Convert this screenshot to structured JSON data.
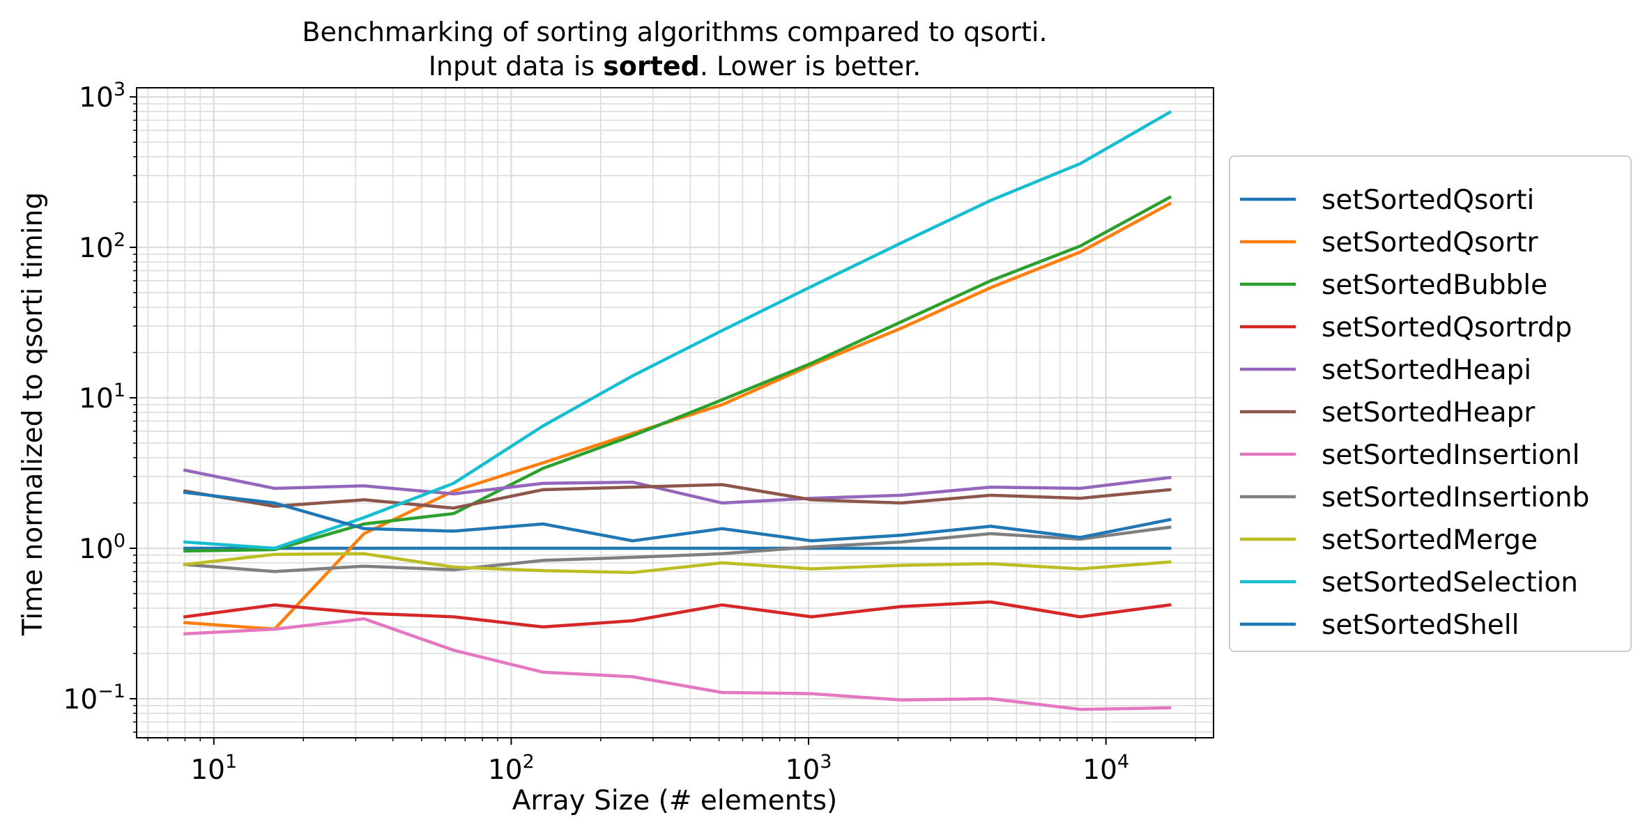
{
  "chart_data": {
    "type": "line",
    "title": {
      "line1": "Benchmarking of sorting algorithms compared to qsorti.",
      "line2_prefix": "Input data is ",
      "line2_bold": "sorted",
      "line2_suffix": ". Lower is better."
    },
    "xlabel": "Array Size (# elements)",
    "ylabel": "Time normalized to qsorti timing",
    "x_scale": "log",
    "y_scale": "log",
    "xlim": [
      5.5,
      23000
    ],
    "ylim": [
      0.055,
      1150
    ],
    "grid": true,
    "legend_position": "right, outside plot",
    "x_ticks": [
      {
        "base": "10",
        "exp": "1",
        "value": 10
      },
      {
        "base": "10",
        "exp": "2",
        "value": 100
      },
      {
        "base": "10",
        "exp": "3",
        "value": 1000
      },
      {
        "base": "10",
        "exp": "4",
        "value": 10000
      }
    ],
    "y_ticks": [
      {
        "base": "10",
        "exp": "−1",
        "value": 0.1
      },
      {
        "base": "10",
        "exp": "0",
        "value": 1
      },
      {
        "base": "10",
        "exp": "1",
        "value": 10
      },
      {
        "base": "10",
        "exp": "2",
        "value": 100
      },
      {
        "base": "10",
        "exp": "3",
        "value": 1000
      }
    ],
    "x": [
      8,
      16,
      32,
      64,
      128,
      256,
      512,
      1024,
      2048,
      4096,
      8192,
      16384
    ],
    "series": [
      {
        "name": "setSortedQsorti",
        "color": "#1f77b4",
        "values": [
          1.0,
          1.0,
          1.0,
          1.0,
          1.0,
          1.0,
          1.0,
          1.0,
          1.0,
          1.0,
          1.0,
          1.0
        ]
      },
      {
        "name": "setSortedQsortr",
        "color": "#ff7f0e",
        "values": [
          0.32,
          0.29,
          1.25,
          2.4,
          3.7,
          5.8,
          9.0,
          16.5,
          29.0,
          54.0,
          93.0,
          195.0
        ]
      },
      {
        "name": "setSortedBubble",
        "color": "#2ca02c",
        "values": [
          0.96,
          0.98,
          1.45,
          1.7,
          3.4,
          5.6,
          9.7,
          17.0,
          32.0,
          60.0,
          102.0,
          215.0
        ]
      },
      {
        "name": "setSortedQsortrdp",
        "color": "#d62728",
        "values": [
          0.35,
          0.42,
          0.37,
          0.35,
          0.3,
          0.33,
          0.42,
          0.35,
          0.41,
          0.44,
          0.35,
          0.42
        ]
      },
      {
        "name": "setSortedHeapi",
        "color": "#9467bd",
        "values": [
          3.3,
          2.5,
          2.6,
          2.3,
          2.7,
          2.75,
          2.0,
          2.15,
          2.25,
          2.55,
          2.5,
          2.95
        ]
      },
      {
        "name": "setSortedHeapr",
        "color": "#8c564b",
        "values": [
          2.4,
          1.9,
          2.1,
          1.85,
          2.45,
          2.55,
          2.65,
          2.1,
          2.0,
          2.25,
          2.15,
          2.45
        ]
      },
      {
        "name": "setSortedInsertionl",
        "color": "#e377c2",
        "values": [
          0.27,
          0.29,
          0.34,
          0.21,
          0.15,
          0.14,
          0.11,
          0.108,
          0.098,
          0.1,
          0.085,
          0.087
        ]
      },
      {
        "name": "setSortedInsertionb",
        "color": "#7f7f7f",
        "values": [
          0.78,
          0.7,
          0.76,
          0.72,
          0.83,
          0.87,
          0.92,
          1.02,
          1.1,
          1.25,
          1.15,
          1.38
        ]
      },
      {
        "name": "setSortedMerge",
        "color": "#bcbd22",
        "values": [
          0.78,
          0.91,
          0.92,
          0.75,
          0.71,
          0.69,
          0.8,
          0.73,
          0.77,
          0.79,
          0.73,
          0.81
        ]
      },
      {
        "name": "setSortedSelection",
        "color": "#17becf",
        "values": [
          1.1,
          1.0,
          1.6,
          2.7,
          6.5,
          14.0,
          28.0,
          55.0,
          107.0,
          205.0,
          360.0,
          790.0
        ]
      },
      {
        "name": "setSortedShell",
        "color": "#1f77b4",
        "values": [
          2.35,
          2.0,
          1.35,
          1.3,
          1.45,
          1.12,
          1.35,
          1.12,
          1.22,
          1.4,
          1.18,
          1.55
        ]
      }
    ]
  }
}
